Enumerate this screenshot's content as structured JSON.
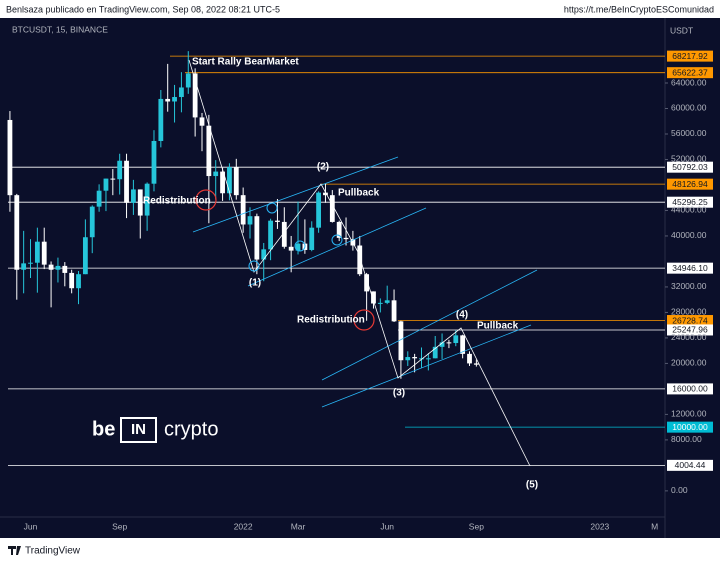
{
  "header": {
    "left": "Benlsaza publicado en TradingView.com, Sep 08, 2022 08:21 UTC-5",
    "right": "https://t.me/BeInCryptoESComunidad"
  },
  "footer": {
    "brand": "TradingView"
  },
  "watermark": {
    "left": "be",
    "box": "IN",
    "right": "crypto"
  },
  "chart_data": {
    "type": "candlestick",
    "symbol": "BTCUSDT, 15, BINANCE",
    "y_axis_label": "USDT",
    "up_color": "#26c6da",
    "down_color": "#ffffff",
    "categories": [
      null,
      null,
      null,
      "Jun",
      null,
      null,
      null,
      null,
      null,
      null,
      null,
      null,
      null,
      null,
      null,
      null,
      "Sep",
      null,
      null,
      null,
      null,
      null,
      null,
      null,
      null,
      null,
      null,
      null,
      null,
      null,
      null,
      null,
      null,
      null,
      "2022",
      null,
      null,
      null,
      null,
      null,
      null,
      null,
      "Mar",
      null,
      null,
      null,
      null,
      null,
      null,
      null,
      null,
      null,
      null,
      null,
      null,
      "Jun",
      null,
      null,
      null,
      null,
      null,
      null,
      null,
      null,
      null,
      null,
      null,
      null,
      "Sep",
      null,
      null,
      null,
      null,
      null,
      null,
      null,
      null,
      null,
      null,
      null,
      null,
      null,
      null,
      null,
      null,
      null,
      "2023",
      null,
      null,
      null,
      null,
      null,
      null,
      null,
      "M",
      null
    ],
    "open": [
      58200,
      46400,
      34700,
      35700,
      35800,
      39100,
      35500,
      34700,
      35300,
      34200,
      31800,
      34000,
      39800,
      44600,
      47100,
      49000,
      48900,
      51800,
      45200,
      47300,
      43200,
      48200,
      54900,
      61500,
      61100,
      61800,
      63300,
      65500,
      58600,
      57300,
      49400,
      50100,
      46700,
      50800,
      46400,
      41800,
      43100,
      36300,
      37900,
      42400,
      42200,
      38300,
      37700,
      38800,
      37800,
      41300,
      46800,
      46400,
      42200,
      39700,
      39500,
      38500,
      34000,
      31300,
      29400,
      29500,
      29900,
      26600,
      20500,
      21000,
      20800,
      20800,
      20800,
      22600,
      23300,
      23200,
      24400,
      21500,
      20000,
      null,
      null,
      null,
      null,
      null,
      null,
      null,
      null,
      null,
      null,
      null,
      null,
      null,
      null,
      null,
      null,
      null,
      null,
      null,
      null,
      null,
      null,
      null,
      null,
      null,
      null,
      null
    ],
    "high": [
      59600,
      46600,
      40800,
      39500,
      41300,
      41300,
      36000,
      36600,
      35900,
      34700,
      34500,
      42600,
      44800,
      48100,
      49000,
      50500,
      52900,
      52900,
      48800,
      47300,
      48400,
      56600,
      62900,
      67000,
      63700,
      65700,
      69000,
      66300,
      59300,
      59000,
      51900,
      50700,
      51400,
      52100,
      47600,
      44500,
      43500,
      38900,
      42700,
      45800,
      44500,
      40000,
      45400,
      42600,
      42300,
      47000,
      48200,
      47200,
      42400,
      42900,
      40800,
      40000,
      34200,
      31300,
      30200,
      32200,
      31600,
      26700,
      21900,
      21500,
      22500,
      21600,
      24300,
      24700,
      23700,
      25200,
      24500,
      21900,
      20600,
      null,
      null,
      null,
      null,
      null,
      null,
      null,
      null,
      null,
      null,
      null,
      null,
      null,
      null,
      null,
      null,
      null,
      null,
      null,
      null,
      null,
      null,
      null,
      null,
      null,
      null,
      null
    ],
    "low": [
      43800,
      30000,
      31000,
      33400,
      31100,
      34800,
      28800,
      32700,
      32100,
      31000,
      29300,
      34000,
      37300,
      43800,
      43900,
      46400,
      46500,
      42800,
      43300,
      39600,
      40800,
      47000,
      53900,
      59500,
      57800,
      59400,
      62300,
      55600,
      53300,
      42000,
      45700,
      45500,
      45600,
      45700,
      40500,
      39600,
      34000,
      32900,
      36200,
      41100,
      38000,
      34300,
      37100,
      37200,
      37600,
      40500,
      45200,
      42100,
      39200,
      38500,
      37700,
      33700,
      26700,
      28600,
      28000,
      29300,
      26500,
      17600,
      19600,
      18600,
      19300,
      18900,
      20800,
      20700,
      22400,
      22700,
      20800,
      19600,
      19500,
      null,
      null,
      null,
      null,
      null,
      null,
      null,
      null,
      null,
      null,
      null,
      null,
      null,
      null,
      null,
      null,
      null,
      null,
      null,
      null,
      null,
      null,
      null,
      null,
      null,
      null,
      null
    ],
    "close": [
      46400,
      34700,
      35700,
      35800,
      39100,
      35500,
      34700,
      35300,
      34200,
      31800,
      34000,
      39800,
      44600,
      47100,
      49000,
      48900,
      51800,
      45200,
      47300,
      43200,
      48200,
      54900,
      61500,
      61100,
      61800,
      63300,
      65500,
      58600,
      57300,
      49400,
      50100,
      46700,
      50800,
      46400,
      41800,
      43100,
      36300,
      37900,
      42400,
      42200,
      38300,
      37700,
      38800,
      37800,
      41300,
      46800,
      46400,
      42200,
      39700,
      39500,
      38500,
      34000,
      31300,
      29400,
      29500,
      29900,
      26600,
      20500,
      21000,
      20800,
      20800,
      20800,
      22600,
      23300,
      23200,
      24400,
      21500,
      20000,
      19800,
      null,
      null,
      null,
      null,
      null,
      null,
      null,
      null,
      null,
      null,
      null,
      null,
      null,
      null,
      null,
      null,
      null,
      null,
      null,
      null,
      null,
      null,
      null,
      null,
      null,
      null,
      null
    ],
    "ylim": [
      -4100,
      74200
    ],
    "yticks": [
      {
        "value": 0,
        "label": "0.00"
      },
      {
        "value": 8000,
        "label": "8000.00"
      },
      {
        "value": 12000,
        "label": "12000.00"
      },
      {
        "value": 20000,
        "label": "20000.00"
      },
      {
        "value": 24000,
        "label": "24000.00"
      },
      {
        "value": 28000,
        "label": "28000.00"
      },
      {
        "value": 32000,
        "label": "32000.00"
      },
      {
        "value": 40000,
        "label": "40000.00"
      },
      {
        "value": 44000,
        "label": "44000.00"
      },
      {
        "value": 52000,
        "label": "52000.00"
      },
      {
        "value": 56000,
        "label": "56000.00"
      },
      {
        "value": 60000,
        "label": "60000.00"
      },
      {
        "value": 64000,
        "label": "64000.00"
      }
    ],
    "levels": [
      {
        "value": 68217.92,
        "label": "68217.92",
        "color": "#ff9800"
      },
      {
        "value": 65622.37,
        "label": "65622.37",
        "color": "#ff9800"
      },
      {
        "value": 50792.03,
        "label": "50792.03",
        "color": "#ffffff"
      },
      {
        "value": 48126.94,
        "label": "48126.94",
        "color": "#ff9800"
      },
      {
        "value": 45296.25,
        "label": "45296.25",
        "color": "#ffffff"
      },
      {
        "value": 34946.1,
        "label": "34946.10",
        "color": "#ffffff"
      },
      {
        "value": 26728.74,
        "label": "26728.74",
        "color": "#ff9800"
      },
      {
        "value": 25247.96,
        "label": "25247.96",
        "color": "#ffffff"
      },
      {
        "value": 16000,
        "label": "16000.00",
        "color": "#ffffff"
      },
      {
        "value": 10000,
        "label": "10000.00",
        "color": "#00bcd4"
      },
      {
        "value": 4004.44,
        "label": "4004.44",
        "color": "#ffffff"
      }
    ],
    "annotations": [
      "Start Rally BearMarket",
      "Redistribution",
      "(1)",
      "(2)",
      "Pullback",
      "Redistribution",
      "(3)",
      "(4)",
      "Pullback",
      "(5)"
    ]
  }
}
